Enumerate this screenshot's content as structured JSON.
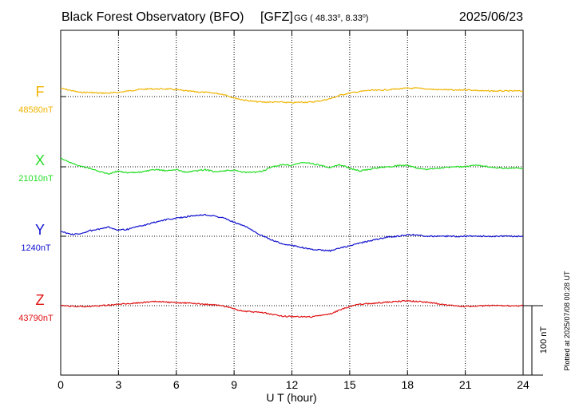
{
  "header": {
    "title": "Black Forest Observatory (BFO)",
    "org": "[GFZ]",
    "coord_prefix": "GG",
    "lat": "48.33",
    "lon": "8.33",
    "date": "2025/06/23"
  },
  "plotted_note": "Plotted at 2025/07/08 00:28 UT",
  "scale_label": "100 nT",
  "chart_data": {
    "type": "line",
    "xlabel": "U T (hour)",
    "xlim": [
      0,
      24
    ],
    "xticks": [
      "0",
      "3",
      "6",
      "9",
      "12",
      "15",
      "18",
      "21",
      "24"
    ],
    "scale_bar_nT": 100,
    "grid": true,
    "series": [
      {
        "name": "F",
        "baseline_label": "48580nT",
        "baseline_nT": 48580,
        "color": "#f0b400",
        "x": [
          0,
          0.5,
          1,
          1.5,
          2,
          2.5,
          3,
          3.5,
          4,
          4.5,
          5,
          5.5,
          6,
          6.5,
          7,
          7.5,
          8,
          8.5,
          9,
          9.5,
          10,
          10.5,
          11,
          11.5,
          12,
          12.5,
          13,
          13.5,
          14,
          14.5,
          15,
          15.5,
          16,
          16.5,
          17,
          17.5,
          18,
          18.5,
          19,
          19.5,
          20,
          20.5,
          21,
          21.5,
          22,
          22.5,
          23,
          23.5,
          24
        ],
        "y": [
          48592,
          48589,
          48586,
          48586,
          48585,
          48585,
          48586,
          48588,
          48590,
          48591,
          48591,
          48591,
          48590,
          48588,
          48587,
          48586,
          48585,
          48583,
          48578,
          48575,
          48573,
          48572,
          48572,
          48572,
          48571,
          48572,
          48572,
          48574,
          48577,
          48582,
          48585,
          48587,
          48589,
          48589,
          48590,
          48591,
          48592,
          48592,
          48591,
          48590,
          48590,
          48589,
          48590,
          48589,
          48588,
          48588,
          48588,
          48588,
          48588
        ]
      },
      {
        "name": "X",
        "baseline_label": "21010nT",
        "baseline_nT": 21010,
        "color": "#22dd22",
        "x": [
          0,
          0.5,
          1,
          1.5,
          2,
          2.5,
          3,
          3.5,
          4,
          4.5,
          5,
          5.5,
          6,
          6.5,
          7,
          7.5,
          8,
          8.5,
          9,
          9.5,
          10,
          10.5,
          11,
          11.5,
          12,
          12.5,
          13,
          13.5,
          14,
          14.5,
          15,
          15.5,
          16,
          16.5,
          17,
          17.5,
          18,
          18.5,
          19,
          19.5,
          20,
          20.5,
          21,
          21.5,
          22,
          22.5,
          23,
          23.5,
          24
        ],
        "y": [
          21023,
          21016,
          21011,
          21008,
          21003,
          21000,
          21004,
          21001,
          21002,
          21004,
          21006,
          21004,
          21006,
          21002,
          21004,
          21006,
          21003,
          21004,
          21005,
          21002,
          21002,
          21004,
          21010,
          21013,
          21012,
          21016,
          21015,
          21012,
          21009,
          21013,
          21008,
          21004,
          21006,
          21009,
          21010,
          21012,
          21012,
          21008,
          21006,
          21008,
          21009,
          21010,
          21010,
          21012,
          21011,
          21009,
          21008,
          21008,
          21007
        ]
      },
      {
        "name": "Y",
        "baseline_label": "1240nT",
        "baseline_nT": 1240,
        "color": "#1010d0",
        "x": [
          0,
          0.5,
          1,
          1.5,
          2,
          2.5,
          3,
          3.5,
          4,
          4.5,
          5,
          5.5,
          6,
          6.5,
          7,
          7.5,
          8,
          8.5,
          9,
          9.5,
          10,
          10.5,
          11,
          11.5,
          12,
          12.5,
          13,
          13.5,
          14,
          14.5,
          15,
          15.5,
          16,
          16.5,
          17,
          17.5,
          18,
          18.5,
          19,
          19.5,
          20,
          20.5,
          21,
          21.5,
          22,
          22.5,
          23,
          23.5,
          24
        ],
        "y": [
          1247,
          1243,
          1243,
          1248,
          1250,
          1253,
          1249,
          1250,
          1254,
          1257,
          1261,
          1264,
          1266,
          1268,
          1270,
          1271,
          1269,
          1266,
          1260,
          1255,
          1248,
          1240,
          1234,
          1229,
          1227,
          1224,
          1221,
          1220,
          1219,
          1223,
          1226,
          1230,
          1233,
          1236,
          1239,
          1240,
          1242,
          1242,
          1240,
          1240,
          1240,
          1240,
          1240,
          1240,
          1240,
          1240,
          1240,
          1240,
          1240
        ]
      },
      {
        "name": "Z",
        "baseline_label": "43790nT",
        "baseline_nT": 43790,
        "color": "#e01010",
        "x": [
          0,
          0.5,
          1,
          1.5,
          2,
          2.5,
          3,
          3.5,
          4,
          4.5,
          5,
          5.5,
          6,
          6.5,
          7,
          7.5,
          8,
          8.5,
          9,
          9.5,
          10,
          10.5,
          11,
          11.5,
          12,
          12.5,
          13,
          13.5,
          14,
          14.5,
          15,
          15.5,
          16,
          16.5,
          17,
          17.5,
          18,
          18.5,
          19,
          19.5,
          20,
          20.5,
          21,
          21.5,
          22,
          22.5,
          23,
          23.5,
          24
        ],
        "y": [
          43790,
          43789,
          43789,
          43789,
          43790,
          43791,
          43792,
          43793,
          43794,
          43795,
          43796,
          43795,
          43794,
          43794,
          43793,
          43792,
          43791,
          43789,
          43785,
          43782,
          43781,
          43780,
          43777,
          43775,
          43774,
          43774,
          43774,
          43776,
          43778,
          43784,
          43789,
          43792,
          43793,
          43794,
          43795,
          43796,
          43797,
          43796,
          43795,
          43793,
          43791,
          43790,
          43789,
          43789,
          43790,
          43790,
          43790,
          43790,
          43790
        ]
      }
    ]
  }
}
